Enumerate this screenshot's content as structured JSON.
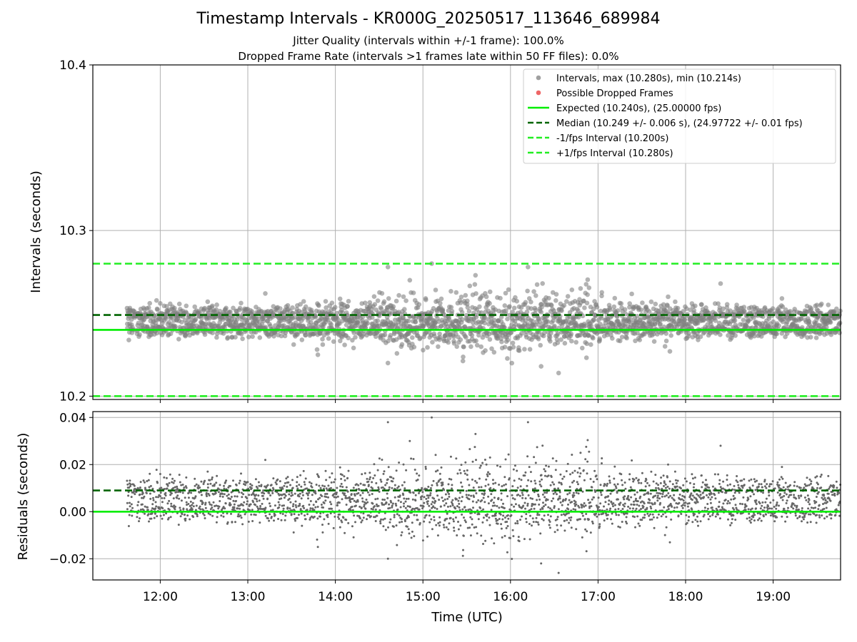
{
  "title": "Timestamp Intervals - KR000G_20250517_113646_689984",
  "subtitle_lines": [
    "Jitter Quality (intervals within +/-1 frame): 100.0%",
    "Dropped Frame Rate (intervals >1 frames late within 50 FF files): 0.0%"
  ],
  "chart_data": [
    {
      "type": "scatter",
      "ylabel": "Intervals (seconds)",
      "xlabel": "",
      "xlim_hours": [
        11.23,
        19.77
      ],
      "ylim": [
        10.198,
        10.4
      ],
      "yticks": [
        10.2,
        10.3,
        10.4
      ],
      "ytick_labels": [
        "10.2",
        "10.3",
        "10.4"
      ],
      "grid": true,
      "legend_position": "top-right",
      "colors": {
        "intervals": "#808080",
        "dropped": "#ff4d4d",
        "expected": "#00ee00",
        "median": "#006400",
        "interval_bounds": "#22ee22"
      },
      "legend": [
        {
          "label": "Intervals, max (10.280s), min (10.214s)",
          "kind": "dot",
          "color": "#a0a0a0"
        },
        {
          "label": "Possible Dropped Frames",
          "kind": "dot",
          "color": "#ee6666"
        },
        {
          "label": "Expected (10.240s), (25.00000 fps)",
          "kind": "line",
          "color": "#00ee00"
        },
        {
          "label": "Median (10.249 +/- 0.006 s), (24.97722 +/- 0.01 fps)",
          "kind": "dash",
          "color": "#006400"
        },
        {
          "label": "-1/fps Interval (10.200s)",
          "kind": "dash",
          "color": "#22ee22"
        },
        {
          "label": "+1/fps Interval (10.280s)",
          "kind": "dash",
          "color": "#22ee22"
        }
      ],
      "reference_lines": [
        {
          "name": "Expected",
          "y": 10.24,
          "style": "solid"
        },
        {
          "name": "Median",
          "y": 10.249,
          "style": "dash"
        },
        {
          "name": "-1/fps Interval",
          "y": 10.2,
          "style": "dash"
        },
        {
          "name": "+1/fps Interval",
          "y": 10.28,
          "style": "dash"
        }
      ],
      "max_interval": 10.28,
      "min_interval": 10.214,
      "points_sample": [
        [
          11.65,
          10.252
        ],
        [
          11.8,
          10.241
        ],
        [
          12.0,
          10.256
        ],
        [
          12.3,
          10.244
        ],
        [
          12.6,
          10.251
        ],
        [
          12.9,
          10.238
        ],
        [
          13.2,
          10.262
        ],
        [
          13.5,
          10.248
        ],
        [
          13.8,
          10.225
        ],
        [
          14.1,
          10.255
        ],
        [
          14.4,
          10.249
        ],
        [
          14.6,
          10.278
        ],
        [
          14.6,
          10.22
        ],
        [
          14.85,
          10.27
        ],
        [
          15.1,
          10.28
        ],
        [
          15.3,
          10.235
        ],
        [
          15.6,
          10.273
        ],
        [
          15.9,
          10.242
        ],
        [
          16.2,
          10.278
        ],
        [
          16.35,
          10.218
        ],
        [
          16.55,
          10.214
        ],
        [
          16.8,
          10.265
        ],
        [
          17.1,
          10.251
        ],
        [
          17.4,
          10.238
        ],
        [
          17.8,
          10.26
        ],
        [
          18.1,
          10.246
        ],
        [
          18.4,
          10.268
        ],
        [
          18.8,
          10.244
        ],
        [
          19.1,
          10.259
        ],
        [
          19.5,
          10.255
        ]
      ]
    },
    {
      "type": "scatter",
      "ylabel": "Residuals (seconds)",
      "xlabel": "Time (UTC)",
      "xlim_hours": [
        11.23,
        19.77
      ],
      "ylim": [
        -0.029,
        0.0425
      ],
      "yticks": [
        -0.02,
        0.0,
        0.02,
        0.04
      ],
      "ytick_labels": [
        "−0.02",
        "0.00",
        "0.02",
        "0.04"
      ],
      "xticks_hours": [
        12,
        13,
        14,
        15,
        16,
        17,
        18,
        19
      ],
      "xtick_labels": [
        "12:00",
        "13:00",
        "14:00",
        "15:00",
        "16:00",
        "17:00",
        "18:00",
        "19:00"
      ],
      "grid": true,
      "reference_lines": [
        {
          "name": "Expected",
          "y": 0.0,
          "style": "solid"
        },
        {
          "name": "Median",
          "y": 0.009,
          "style": "dash"
        }
      ]
    }
  ]
}
